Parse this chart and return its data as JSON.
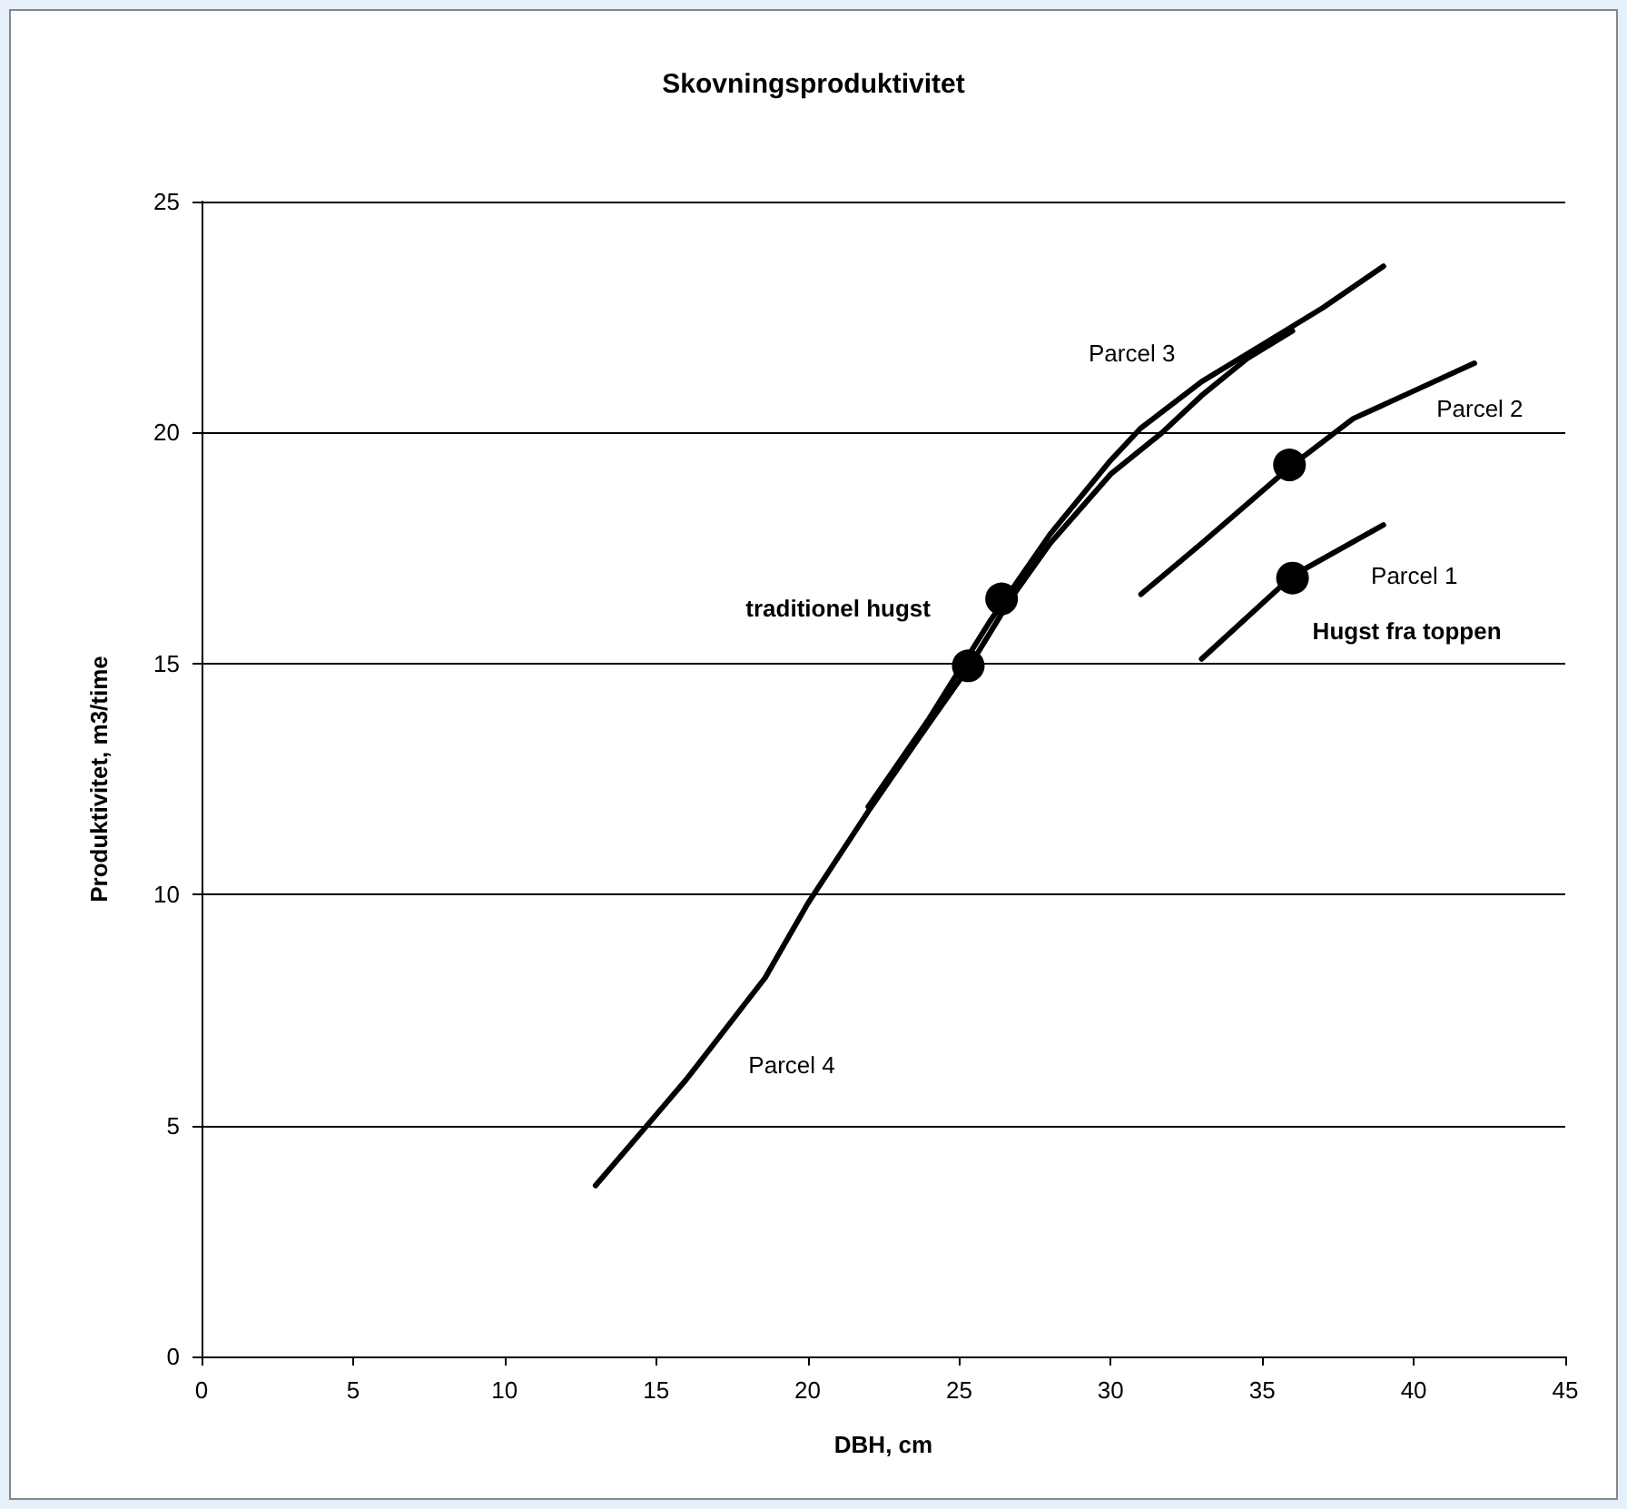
{
  "chart_data": {
    "type": "line",
    "title": "Skovningsproduktivitet",
    "xlabel": "DBH, cm",
    "ylabel": "Produktivitet, m3/time",
    "xlim": [
      0,
      45
    ],
    "xticks": [
      0,
      5,
      10,
      15,
      20,
      25,
      30,
      35,
      40,
      45
    ],
    "ylim": [
      0,
      25
    ],
    "yticks": [
      0,
      5,
      10,
      15,
      20,
      25
    ],
    "grid": "y",
    "marker": "none",
    "line_style": "solid",
    "series": [
      {
        "name": "Parcel 1",
        "color": "#000000",
        "x": [
          33,
          36,
          39
        ],
        "values": [
          15.1,
          16.9,
          18.0
        ]
      },
      {
        "name": "Parcel 2",
        "color": "#000000",
        "x": [
          31,
          33,
          36,
          38,
          40,
          42
        ],
        "values": [
          16.5,
          17.6,
          19.3,
          20.3,
          20.9,
          21.5
        ]
      },
      {
        "name": "Parcel 3",
        "color": "#000000",
        "x": [
          22,
          24,
          26,
          28,
          30,
          31,
          33,
          35,
          37,
          39
        ],
        "values": [
          11.9,
          13.8,
          15.9,
          17.8,
          19.4,
          20.1,
          21.1,
          21.9,
          22.7,
          23.6
        ]
      },
      {
        "name": "Parcel 4",
        "color": "#000000",
        "x": [
          13,
          14.7,
          16,
          18.6,
          20,
          22,
          24,
          25.4,
          26.7,
          28,
          30,
          31.7,
          33,
          34.5,
          36
        ],
        "values": [
          3.7,
          5.0,
          6.0,
          8.2,
          9.8,
          11.8,
          13.7,
          15.0,
          16.4,
          17.6,
          19.1,
          20.0,
          20.8,
          21.6,
          22.2
        ]
      },
      {
        "name": "traditionel hugst",
        "type": "scatter",
        "marker": "circle",
        "color": "#000000",
        "x": [
          25.3,
          26.4
        ],
        "values": [
          14.95,
          16.4
        ]
      },
      {
        "name": "Hugst fra toppen",
        "type": "scatter",
        "marker": "circle",
        "color": "#000000",
        "x": [
          35.9,
          36.0
        ],
        "values": [
          19.3,
          16.85
        ]
      }
    ]
  }
}
